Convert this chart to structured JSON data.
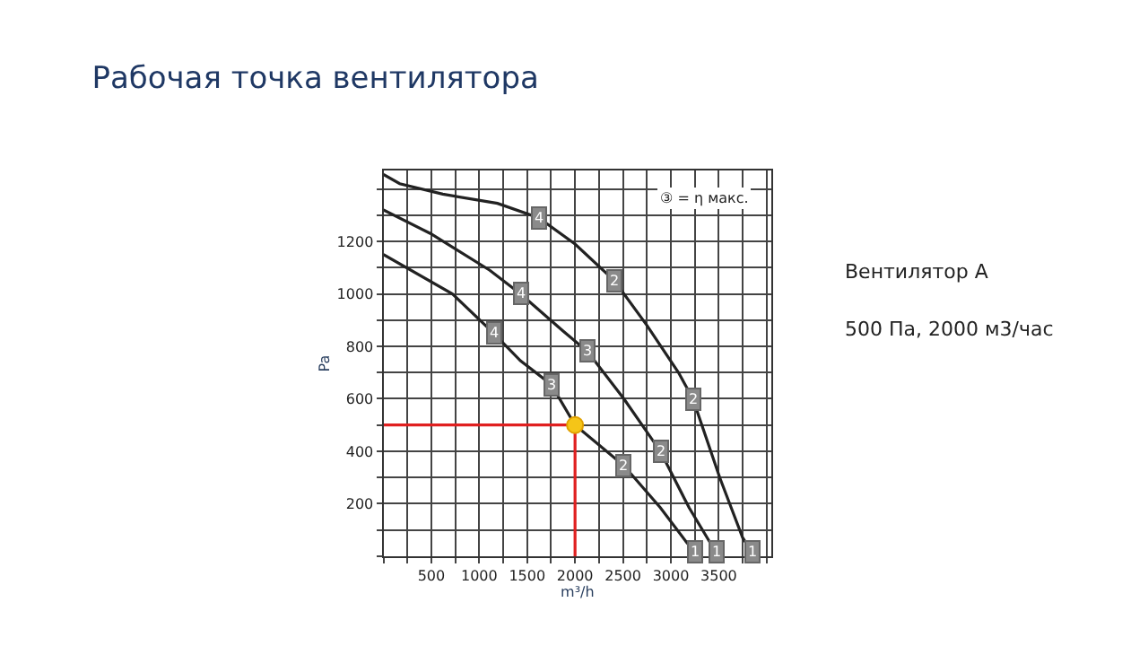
{
  "chart_data": {
    "type": "line",
    "title": "Рабочая точка вентилятора",
    "xlabel": "m³/h",
    "ylabel": "Pa",
    "xlim": [
      0,
      4050
    ],
    "ylim": [
      0,
      1470
    ],
    "xticks": [
      {
        "value": 0,
        "label": null
      },
      {
        "value": 250,
        "label": null
      },
      500,
      {
        "value": 750,
        "label": null
      },
      1000,
      {
        "value": 1250,
        "label": null
      },
      1500,
      {
        "value": 1750,
        "label": null
      },
      2000,
      {
        "value": 2250,
        "label": null
      },
      2500,
      {
        "value": 2750,
        "label": null
      },
      3000,
      {
        "value": 3250,
        "label": null
      },
      3500,
      {
        "value": 3750,
        "label": null
      },
      {
        "value": 4000,
        "label": null
      }
    ],
    "yticks": [
      {
        "value": 0,
        "label": null
      },
      {
        "value": 100,
        "label": null
      },
      200,
      {
        "value": 300,
        "label": null
      },
      400,
      {
        "value": 500,
        "label": null
      },
      600,
      {
        "value": 700,
        "label": null
      },
      800,
      {
        "value": 900,
        "label": null
      },
      1000,
      {
        "value": 1100,
        "label": null
      },
      1200,
      {
        "value": 1300,
        "label": null
      },
      {
        "value": 1400,
        "label": null
      }
    ],
    "grid": true,
    "marker": "none",
    "line_style": "solid",
    "series": [
      {
        "color": "#222222",
        "x": [
          0,
          170,
          620,
          1190,
          1620,
          2000,
          2410,
          2750,
          3080,
          3230,
          3510,
          3750,
          3850
        ],
        "values": [
          1455,
          1420,
          1380,
          1345,
          1290,
          1190,
          1050,
          880,
          700,
          600,
          300,
          70,
          15
        ]
      },
      {
        "color": "#222222",
        "x": [
          0,
          490,
          1110,
          1430,
          1870,
          2130,
          2510,
          2890,
          3190,
          3380,
          3470
        ],
        "values": [
          1320,
          1230,
          1090,
          1000,
          860,
          780,
          600,
          400,
          185,
          70,
          15
        ]
      },
      {
        "color": "#222222",
        "x": [
          0,
          720,
          1150,
          1430,
          1750,
          2000,
          2510,
          2890,
          3170,
          3260
        ],
        "values": [
          1150,
          1000,
          850,
          745,
          655,
          500,
          345,
          185,
          50,
          15
        ]
      },
      {
        "color": "#e02020",
        "x": [
          0,
          2000,
          2000
        ],
        "values": [
          500,
          500,
          0
        ]
      },
      {
        "type": "scatter",
        "marker": "circle",
        "color": "#f5c518",
        "x": [
          2000
        ],
        "values": [
          500
        ]
      }
    ],
    "annotations": [
      "③ = η макс.",
      "Вентилятор А",
      "500 Па, 2000 м3/час",
      {
        "text": "4",
        "x": 1620,
        "y": 1290
      },
      {
        "text": "2",
        "x": 2410,
        "y": 1050
      },
      {
        "text": "2",
        "x": 3230,
        "y": 600
      },
      {
        "text": "1",
        "x": 3850,
        "y": 15
      },
      {
        "text": "4",
        "x": 1430,
        "y": 1000
      },
      {
        "text": "3",
        "x": 2130,
        "y": 780
      },
      {
        "text": "2",
        "x": 2890,
        "y": 400
      },
      {
        "text": "1",
        "x": 3470,
        "y": 15
      },
      {
        "text": "4",
        "x": 1150,
        "y": 850
      },
      {
        "text": "3",
        "x": 1750,
        "y": 655
      },
      {
        "text": "2",
        "x": 2510,
        "y": 345
      },
      {
        "text": "1",
        "x": 3260,
        "y": 15
      }
    ]
  }
}
